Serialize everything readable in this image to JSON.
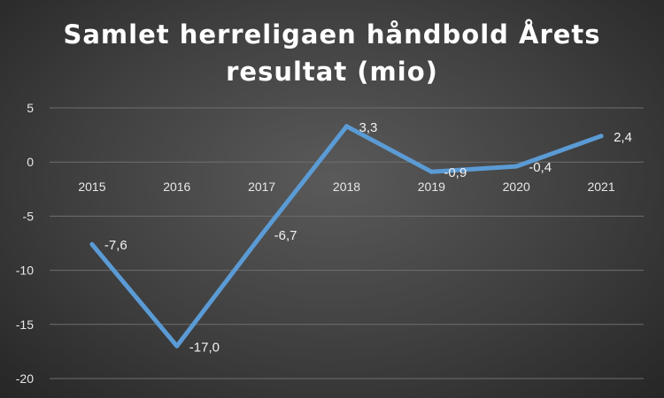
{
  "chart_data": {
    "type": "line",
    "title_lines": [
      "Samlet herreligaen håndbold Årets",
      "resultat (mio)"
    ],
    "categories": [
      "2015",
      "2016",
      "2017",
      "2018",
      "2019",
      "2020",
      "2021"
    ],
    "series": [
      {
        "values": [
          -7.6,
          -17.0,
          -6.7,
          3.3,
          -0.9,
          -0.4,
          2.4
        ],
        "labels": [
          "-7,6",
          "-17,0",
          "-6,7",
          "3,3",
          "-0,9",
          "-0,4",
          "2,4"
        ],
        "color": "#5b9bd5"
      }
    ],
    "ylim": [
      -20,
      5
    ],
    "yticks": [
      5,
      0,
      -5,
      -10,
      -15,
      -20
    ],
    "ytick_labels": [
      "5",
      "0",
      "-5",
      "-10",
      "-15",
      "-20"
    ],
    "grid": true,
    "grid_color": "#6e6e6e",
    "legend": "none"
  }
}
